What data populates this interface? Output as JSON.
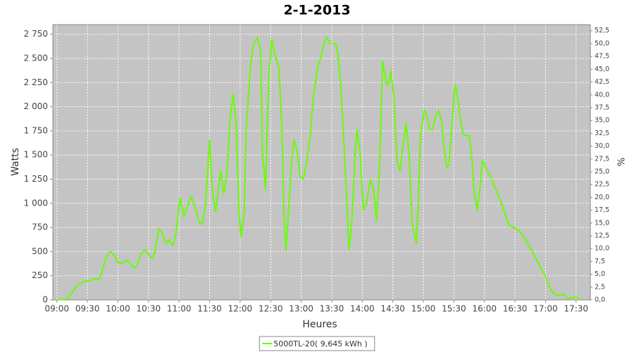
{
  "chart_data": {
    "type": "line",
    "title": "2-1-2013",
    "xlabel": "Heures",
    "ylabel": "Watts",
    "y2label": "%",
    "background": "#c4c4c4",
    "grid": true,
    "legend": "bottom",
    "x": [
      540,
      550,
      553,
      560,
      566,
      573,
      576,
      581,
      584,
      588,
      591,
      593,
      597,
      600,
      604,
      609,
      612,
      616,
      619,
      622,
      626,
      629,
      633,
      636,
      640,
      643,
      647,
      650,
      654,
      657,
      661,
      665,
      669,
      672,
      676,
      680,
      683,
      686,
      690,
      693,
      696,
      698,
      701,
      704,
      707,
      710,
      713,
      716,
      719,
      721,
      724,
      726,
      730,
      733,
      737,
      740,
      742,
      745,
      748,
      751,
      754,
      758,
      761,
      763,
      765,
      768,
      771,
      773,
      776,
      779,
      782,
      785,
      789,
      792,
      796,
      799,
      803,
      805,
      808,
      811,
      814,
      816,
      819,
      822,
      825,
      827,
      830,
      833,
      835,
      838,
      841,
      844,
      848,
      851,
      854,
      857,
      860,
      864,
      866,
      868,
      871,
      874,
      877,
      879,
      883,
      886,
      889,
      893,
      895,
      897,
      901,
      904,
      906,
      909,
      912,
      915,
      918,
      920,
      923,
      925,
      928,
      931,
      933,
      936,
      939,
      942,
      945,
      947,
      950,
      953,
      956,
      958,
      962,
      965,
      969,
      976,
      980,
      984,
      988,
      993,
      1000,
      1007,
      1014,
      1021,
      1024,
      1028,
      1033,
      1038,
      1042,
      1048,
      1052,
      1054
    ],
    "series": [
      {
        "name": "5000TL-20( 9,645 kWh )",
        "color": "#66ff00",
        "values": [
          0,
          10,
          50,
          150,
          190,
          200,
          220,
          210,
          280,
          420,
          490,
          500,
          450,
          390,
          380,
          410,
          380,
          330,
          360,
          470,
          520,
          490,
          430,
          480,
          740,
          700,
          590,
          620,
          560,
          700,
          1060,
          860,
          1000,
          1070,
          950,
          800,
          780,
          1000,
          1650,
          1100,
          910,
          1100,
          1340,
          1100,
          1300,
          1850,
          2130,
          1850,
          900,
          650,
          900,
          1800,
          2400,
          2650,
          2710,
          2600,
          1500,
          1150,
          2300,
          2700,
          2550,
          2400,
          1800,
          900,
          510,
          1000,
          1500,
          1650,
          1550,
          1280,
          1250,
          1400,
          1700,
          2100,
          2400,
          2500,
          2680,
          2720,
          2660,
          2650,
          2650,
          2550,
          2200,
          1600,
          1000,
          520,
          850,
          1550,
          1760,
          1500,
          930,
          1000,
          1250,
          1150,
          820,
          1400,
          2470,
          2220,
          2250,
          2370,
          2100,
          1450,
          1330,
          1520,
          1830,
          1500,
          800,
          590,
          1000,
          1700,
          1970,
          1900,
          1760,
          1770,
          1900,
          1960,
          1850,
          1600,
          1370,
          1400,
          1800,
          2230,
          2150,
          1900,
          1720,
          1700,
          1700,
          1550,
          1100,
          930,
          1200,
          1450,
          1350,
          1300,
          1200,
          1020,
          900,
          780,
          750,
          730,
          630,
          500,
          360,
          220,
          130,
          60,
          50,
          60,
          10,
          30,
          20,
          0
        ]
      }
    ],
    "xlim": [
      536,
      1064
    ],
    "xticks": [
      {
        "value": 540,
        "label": "09:00"
      },
      {
        "value": 570,
        "label": "09:30"
      },
      {
        "value": 600,
        "label": "10:00"
      },
      {
        "value": 630,
        "label": "10:30"
      },
      {
        "value": 660,
        "label": "11:00"
      },
      {
        "value": 690,
        "label": "11:30"
      },
      {
        "value": 720,
        "label": "12:00"
      },
      {
        "value": 750,
        "label": "12:30"
      },
      {
        "value": 780,
        "label": "13:00"
      },
      {
        "value": 810,
        "label": "13:30"
      },
      {
        "value": 840,
        "label": "14:00"
      },
      {
        "value": 870,
        "label": "14:30"
      },
      {
        "value": 900,
        "label": "15:00"
      },
      {
        "value": 930,
        "label": "15:30"
      },
      {
        "value": 960,
        "label": "16:00"
      },
      {
        "value": 990,
        "label": "16:30"
      },
      {
        "value": 1020,
        "label": "17:00"
      },
      {
        "value": 1050,
        "label": "17:30"
      }
    ],
    "ylim": [
      0,
      2850
    ],
    "yticks": [
      0,
      250,
      500,
      750,
      {
        "value": 1000,
        "label": "1 000"
      },
      {
        "value": 1250,
        "label": "1 250"
      },
      {
        "value": 1500,
        "label": "1 500"
      },
      {
        "value": 1750,
        "label": "1 750"
      },
      {
        "value": 2000,
        "label": "2 000"
      },
      {
        "value": 2250,
        "label": "2 250"
      },
      {
        "value": 2500,
        "label": "2 500"
      },
      {
        "value": 2750,
        "label": "2 750"
      }
    ],
    "y2lim": [
      0,
      53.7
    ],
    "y2ticks": [
      {
        "value": 0,
        "label": "0,0"
      },
      {
        "value": 2.5,
        "label": "2,5"
      },
      {
        "value": 5,
        "label": "5,0"
      },
      {
        "value": 7.5,
        "label": "7,5"
      },
      {
        "value": 10,
        "label": "10,0"
      },
      {
        "value": 12.5,
        "label": "12,5"
      },
      {
        "value": 15,
        "label": "15,0"
      },
      {
        "value": 17.5,
        "label": "17,5"
      },
      {
        "value": 20,
        "label": "20,0"
      },
      {
        "value": 22.5,
        "label": "22,5"
      },
      {
        "value": 25,
        "label": "25,0"
      },
      {
        "value": 27.5,
        "label": "27,5"
      },
      {
        "value": 30,
        "label": "30,0"
      },
      {
        "value": 32.5,
        "label": "32,5"
      },
      {
        "value": 35,
        "label": "35,0"
      },
      {
        "value": 37.5,
        "label": "37,5"
      },
      {
        "value": 40,
        "label": "40,0"
      },
      {
        "value": 42.5,
        "label": "42,5"
      },
      {
        "value": 45,
        "label": "45,0"
      },
      {
        "value": 47.5,
        "label": "47,5"
      },
      {
        "value": 50,
        "label": "50,0"
      },
      {
        "value": 52.5,
        "label": "52,5"
      }
    ]
  }
}
